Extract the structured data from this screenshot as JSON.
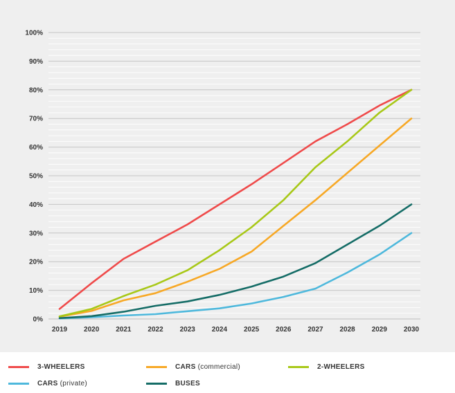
{
  "chart_data": {
    "type": "line",
    "x": [
      2019,
      2020,
      2021,
      2022,
      2023,
      2024,
      2025,
      2026,
      2027,
      2028,
      2029,
      2030
    ],
    "x_tick_labels": [
      "2019",
      "2020",
      "2021",
      "2022",
      "2023",
      "2024",
      "2025",
      "2026",
      "2027",
      "2028",
      "2029",
      "2030"
    ],
    "y_tick_labels": [
      "0%",
      "10%",
      "20%",
      "30%",
      "40%",
      "50%",
      "60%",
      "70%",
      "80%",
      "90%",
      "100%"
    ],
    "ylim": [
      0,
      100
    ],
    "grid": true,
    "legend_position": "bottom",
    "series": [
      {
        "key": "three-wheelers",
        "name": "3-WHEELERS",
        "name_suffix": "",
        "color": "#ef4a4a",
        "values": [
          3.5,
          12.5,
          21,
          27,
          33,
          40,
          47,
          54.5,
          62,
          68,
          74.5,
          80
        ]
      },
      {
        "key": "cars-commercial",
        "name": "CARS",
        "name_suffix": "(commercial)",
        "color": "#f7a825",
        "values": [
          0.8,
          2.8,
          6.5,
          9,
          13,
          17.5,
          23.5,
          32.5,
          41.5,
          51,
          60.5,
          70
        ]
      },
      {
        "key": "two-wheelers",
        "name": "2-WHEELERS",
        "name_suffix": "",
        "color": "#a8c817",
        "values": [
          0.9,
          3.5,
          8,
          12,
          17,
          24,
          32,
          41.5,
          53,
          62,
          72,
          80
        ]
      },
      {
        "key": "cars-private",
        "name": "CARS",
        "name_suffix": "(private)",
        "color": "#4db8dc",
        "values": [
          0.2,
          0.6,
          1.2,
          1.7,
          2.7,
          3.7,
          5.4,
          7.7,
          10.6,
          16.2,
          22.5,
          30
        ]
      },
      {
        "key": "buses",
        "name": "BUSES",
        "name_suffix": "",
        "color": "#146c66",
        "values": [
          0.3,
          1,
          2.5,
          4.6,
          6.1,
          8.4,
          11.3,
          14.8,
          19.5,
          26,
          32.5,
          40
        ]
      }
    ]
  }
}
